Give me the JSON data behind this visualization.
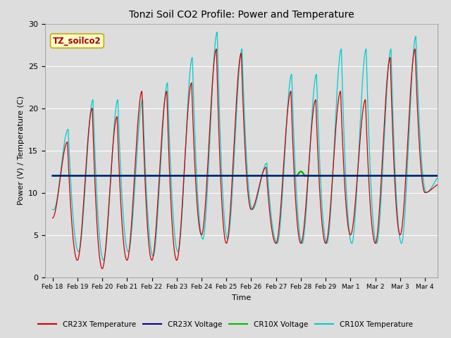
{
  "title": "Tonzi Soil CO2 Profile: Power and Temperature",
  "ylabel": "Power (V) / Temperature (C)",
  "xlabel": "Time",
  "ylim": [
    0,
    30
  ],
  "annotation_text": "TZ_soilco2",
  "annotation_bg": "#FFFFCC",
  "annotation_border": "#CCAA00",
  "annotation_text_color": "#AA0000",
  "fig_bg_color": "#DDDDDD",
  "plot_bg_color": "#DDDDDD",
  "cr23x_temp_color": "#CC0000",
  "cr23x_volt_color": "#000099",
  "cr10x_volt_color": "#00BB00",
  "cr10x_temp_color": "#00CCCC",
  "voltage_level": 12.0,
  "tick_labels": [
    "Feb 18",
    "Feb 19",
    "Feb 20",
    "Feb 21",
    "Feb 22",
    "Feb 23",
    "Feb 24",
    "Feb 25",
    "Feb 26",
    "Feb 27",
    "Feb 28",
    "Feb 29",
    "Mar 1",
    "Mar 2",
    "Mar 3",
    "Mar 4"
  ],
  "legend_entries": [
    "CR23X Temperature",
    "CR23X Voltage",
    "CR10X Voltage",
    "CR10X Temperature"
  ],
  "legend_colors": [
    "#CC0000",
    "#000099",
    "#00BB00",
    "#00CCCC"
  ],
  "cr23x_peaks": [
    16,
    20,
    19,
    22,
    22,
    23,
    27,
    26.5,
    13,
    22,
    21,
    22,
    21,
    26,
    27,
    11
  ],
  "cr23x_troughs": [
    7,
    2,
    1,
    2,
    2,
    2,
    5,
    4,
    8,
    4,
    4,
    4,
    5,
    4,
    5,
    10
  ],
  "cr10x_peaks": [
    17.5,
    21,
    21,
    21,
    23,
    26,
    29,
    27,
    13.5,
    24,
    24,
    27,
    27,
    27,
    28.5,
    12
  ],
  "cr10x_troughs": [
    8,
    3,
    2,
    3,
    2.5,
    3,
    4.5,
    4.5,
    8,
    4,
    4,
    4,
    4,
    4,
    4,
    10
  ]
}
